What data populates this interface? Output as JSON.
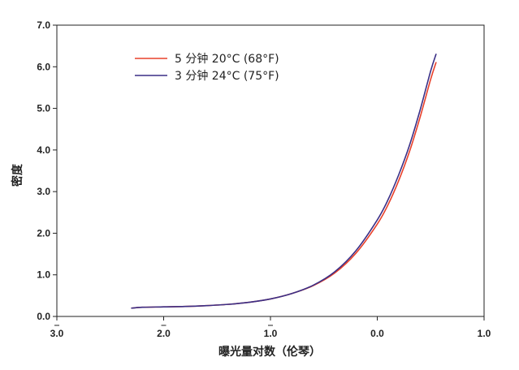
{
  "chart_data": {
    "type": "line",
    "title": "",
    "xlabel": "曝光量对数（伦琴）",
    "ylabel": "密度",
    "xlim": [
      -3.0,
      1.0
    ],
    "ylim": [
      0.0,
      7.0
    ],
    "x_ticks": [
      {
        "value": -3.0,
        "label": "3.0",
        "bar": true
      },
      {
        "value": -2.0,
        "label": "2.0",
        "bar": true
      },
      {
        "value": -1.0,
        "label": "1.0",
        "bar": true
      },
      {
        "value": 0.0,
        "label": "0.0",
        "bar": false
      },
      {
        "value": 1.0,
        "label": "1.0",
        "bar": false
      }
    ],
    "y_ticks": [
      {
        "value": 0.0,
        "label": "0.0"
      },
      {
        "value": 1.0,
        "label": "1.0"
      },
      {
        "value": 2.0,
        "label": "2.0"
      },
      {
        "value": 3.0,
        "label": "3.0"
      },
      {
        "value": 4.0,
        "label": "4.0"
      },
      {
        "value": 5.0,
        "label": "5.0"
      },
      {
        "value": 6.0,
        "label": "6.0"
      },
      {
        "value": 7.0,
        "label": "7.0"
      }
    ],
    "grid": false,
    "legend_position": "top-left",
    "series": [
      {
        "name": "5 分钟 20°C (68°F)",
        "color": "#e8402a",
        "points": [
          [
            -2.3,
            0.2
          ],
          [
            -2.2,
            0.22
          ],
          [
            -2.0,
            0.23
          ],
          [
            -1.8,
            0.24
          ],
          [
            -1.6,
            0.26
          ],
          [
            -1.4,
            0.29
          ],
          [
            -1.2,
            0.34
          ],
          [
            -1.0,
            0.42
          ],
          [
            -0.8,
            0.55
          ],
          [
            -0.6,
            0.74
          ],
          [
            -0.4,
            1.04
          ],
          [
            -0.2,
            1.52
          ],
          [
            0.0,
            2.22
          ],
          [
            0.1,
            2.68
          ],
          [
            0.2,
            3.26
          ],
          [
            0.3,
            3.95
          ],
          [
            0.4,
            4.78
          ],
          [
            0.5,
            5.7
          ],
          [
            0.55,
            6.1
          ]
        ]
      },
      {
        "name": "3 分钟 24°C (75°F)",
        "color": "#3a2f86",
        "points": [
          [
            -2.3,
            0.2
          ],
          [
            -2.2,
            0.22
          ],
          [
            -2.0,
            0.23
          ],
          [
            -1.8,
            0.24
          ],
          [
            -1.6,
            0.26
          ],
          [
            -1.4,
            0.29
          ],
          [
            -1.2,
            0.34
          ],
          [
            -1.0,
            0.42
          ],
          [
            -0.8,
            0.55
          ],
          [
            -0.6,
            0.75
          ],
          [
            -0.4,
            1.07
          ],
          [
            -0.2,
            1.58
          ],
          [
            0.0,
            2.32
          ],
          [
            0.1,
            2.8
          ],
          [
            0.2,
            3.4
          ],
          [
            0.3,
            4.1
          ],
          [
            0.4,
            4.95
          ],
          [
            0.5,
            5.9
          ],
          [
            0.55,
            6.3
          ]
        ]
      }
    ]
  }
}
